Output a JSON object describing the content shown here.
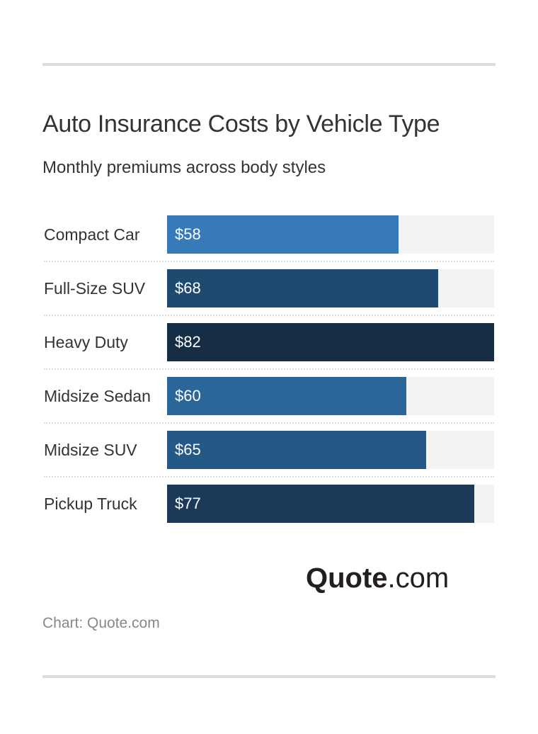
{
  "header": {
    "title": "Auto Insurance Costs by Vehicle Type",
    "subtitle": "Monthly premiums across body styles"
  },
  "rows": [
    {
      "label": "Compact Car",
      "value": 58,
      "value_label": "$58",
      "color": "#367bb7"
    },
    {
      "label": "Full-Size SUV",
      "value": 68,
      "value_label": "$68",
      "color": "#1f4a6f"
    },
    {
      "label": "Heavy Duty",
      "value": 82,
      "value_label": "$82",
      "color": "#152d45"
    },
    {
      "label": "Midsize Sedan",
      "value": 60,
      "value_label": "$60",
      "color": "#2b6699"
    },
    {
      "label": "Midsize SUV",
      "value": 65,
      "value_label": "$65",
      "color": "#245886"
    },
    {
      "label": "Pickup Truck",
      "value": 77,
      "value_label": "$77",
      "color": "#1b3a5a"
    }
  ],
  "logo": {
    "bold": "Quote",
    "light": ".com"
  },
  "footer": {
    "source": "Chart: Quote.com"
  },
  "chart_data": {
    "type": "bar",
    "orientation": "horizontal",
    "title": "Auto Insurance Costs by Vehicle Type",
    "subtitle": "Monthly premiums across body styles",
    "categories": [
      "Compact Car",
      "Full-Size SUV",
      "Heavy Duty",
      "Midsize Sedan",
      "Midsize SUV",
      "Pickup Truck"
    ],
    "values": [
      58,
      68,
      82,
      60,
      65,
      77
    ],
    "value_labels": [
      "$58",
      "$68",
      "$82",
      "$60",
      "$65",
      "$77"
    ],
    "xlabel": "",
    "ylabel": "",
    "xlim": [
      0,
      82
    ],
    "grid": false,
    "legend": null,
    "unit": "USD per month",
    "source": "Chart: Quote.com"
  }
}
